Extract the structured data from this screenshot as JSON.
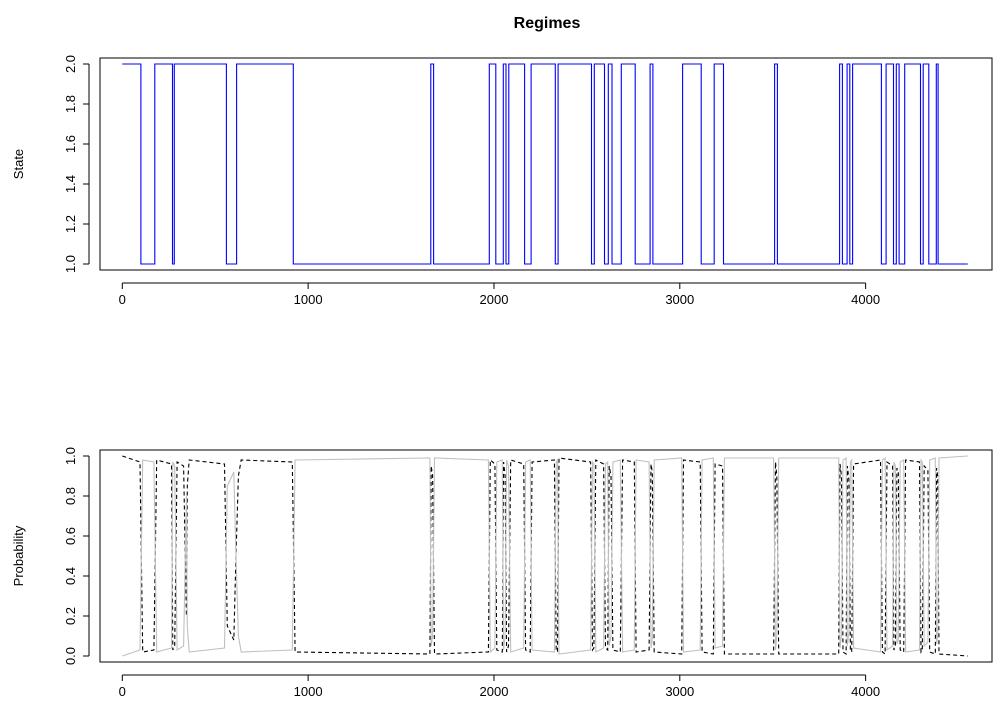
{
  "chart_data": [
    {
      "type": "line",
      "title": "Regimes",
      "xlabel": "",
      "ylabel": "State",
      "xlim": [
        -120,
        4680
      ],
      "ylim": [
        0.97,
        2.03
      ],
      "x_ticks": [
        0,
        1000,
        2000,
        3000,
        4000
      ],
      "x_tick_labels": [
        "0",
        "1000",
        "2000",
        "3000",
        "4000"
      ],
      "y_ticks": [
        1.0,
        1.2,
        1.4,
        1.6,
        1.8,
        2.0
      ],
      "y_tick_labels": [
        "1.0",
        "1.2",
        "1.4",
        "1.6",
        "1.8",
        "2.0"
      ],
      "grid": false,
      "legend": "none",
      "line_style": "step",
      "color": "#0000ff",
      "series": [
        {
          "x": [
            0,
            100,
            100,
            175,
            175,
            270,
            270,
            280,
            280,
            560,
            560,
            615,
            615,
            920,
            920,
            1660,
            1660,
            1675,
            1675,
            1975,
            1975,
            2010,
            2010,
            2050,
            2050,
            2065,
            2065,
            2080,
            2080,
            2165,
            2165,
            2200,
            2200,
            2330,
            2330,
            2345,
            2345,
            2525,
            2525,
            2540,
            2540,
            2595,
            2595,
            2615,
            2615,
            2635,
            2635,
            2685,
            2685,
            2760,
            2760,
            2840,
            2840,
            2855,
            2855,
            3015,
            3015,
            3115,
            3115,
            3185,
            3185,
            3235,
            3235,
            3510,
            3510,
            3525,
            3525,
            3860,
            3860,
            3875,
            3875,
            3900,
            3900,
            3915,
            3915,
            3930,
            3930,
            4085,
            4085,
            4110,
            4110,
            4150,
            4150,
            4165,
            4165,
            4180,
            4180,
            4210,
            4210,
            4295,
            4295,
            4310,
            4310,
            4340,
            4340,
            4380,
            4380,
            4390,
            4390,
            4550
          ],
          "y": [
            2,
            2,
            1,
            1,
            2,
            2,
            1,
            1,
            2,
            2,
            1,
            1,
            2,
            2,
            1,
            1,
            2,
            2,
            1,
            1,
            2,
            2,
            1,
            1,
            2,
            2,
            1,
            1,
            2,
            2,
            1,
            1,
            2,
            2,
            1,
            1,
            2,
            2,
            1,
            1,
            2,
            2,
            1,
            1,
            2,
            2,
            1,
            1,
            2,
            2,
            1,
            1,
            2,
            2,
            1,
            1,
            2,
            2,
            1,
            1,
            2,
            2,
            1,
            1,
            2,
            2,
            1,
            1,
            2,
            2,
            1,
            1,
            2,
            2,
            1,
            1,
            2,
            2,
            1,
            1,
            2,
            2,
            1,
            1,
            2,
            2,
            1,
            1,
            2,
            2,
            1,
            1,
            2,
            2,
            1,
            1,
            2,
            2,
            1,
            1
          ]
        }
      ]
    },
    {
      "type": "line",
      "title": "",
      "xlabel": "",
      "ylabel": "Probability",
      "xlim": [
        -120,
        4680
      ],
      "ylim": [
        -0.03,
        1.03
      ],
      "x_ticks": [
        0,
        1000,
        2000,
        3000,
        4000
      ],
      "x_tick_labels": [
        "0",
        "1000",
        "2000",
        "3000",
        "4000"
      ],
      "y_ticks": [
        0.0,
        0.2,
        0.4,
        0.6,
        0.8,
        1.0
      ],
      "y_tick_labels": [
        "0.0",
        "0.2",
        "0.4",
        "0.6",
        "0.8",
        "1.0"
      ],
      "grid": false,
      "legend": "none",
      "series": [
        {
          "style": "dashed",
          "color": "#000000",
          "x": [
            0,
            95,
            110,
            170,
            185,
            265,
            272,
            282,
            295,
            330,
            345,
            350,
            360,
            550,
            565,
            600,
            610,
            625,
            640,
            915,
            930,
            1655,
            1662,
            1670,
            1680,
            1970,
            1980,
            2005,
            2015,
            2045,
            2052,
            2060,
            2068,
            2078,
            2090,
            2160,
            2170,
            2195,
            2205,
            2325,
            2335,
            2342,
            2350,
            2520,
            2530,
            2538,
            2548,
            2590,
            2600,
            2612,
            2620,
            2630,
            2640,
            2680,
            2692,
            2755,
            2765,
            2835,
            2845,
            2852,
            2862,
            3010,
            3020,
            3110,
            3120,
            3180,
            3190,
            3230,
            3240,
            3505,
            3515,
            3522,
            3532,
            3855,
            3862,
            3870,
            3878,
            3895,
            3902,
            3910,
            3918,
            3925,
            3935,
            4080,
            4090,
            4105,
            4115,
            4145,
            4152,
            4160,
            4168,
            4176,
            4186,
            4205,
            4215,
            4290,
            4298,
            4305,
            4315,
            4335,
            4345,
            4375,
            4382,
            4388,
            4395,
            4550
          ],
          "y": [
            1.0,
            0.97,
            0.02,
            0.03,
            0.98,
            0.96,
            0.03,
            0.05,
            0.97,
            0.95,
            0.2,
            0.85,
            0.98,
            0.96,
            0.15,
            0.08,
            0.45,
            0.9,
            0.98,
            0.97,
            0.02,
            0.01,
            0.95,
            0.9,
            0.01,
            0.02,
            0.98,
            0.96,
            0.03,
            0.02,
            0.97,
            0.9,
            0.02,
            0.05,
            0.98,
            0.96,
            0.03,
            0.02,
            0.97,
            0.98,
            0.03,
            0.02,
            0.99,
            0.97,
            0.03,
            0.04,
            0.98,
            0.96,
            0.04,
            0.03,
            0.95,
            0.9,
            0.03,
            0.02,
            0.98,
            0.97,
            0.02,
            0.03,
            0.96,
            0.92,
            0.02,
            0.01,
            0.98,
            0.97,
            0.02,
            0.01,
            0.96,
            0.95,
            0.01,
            0.01,
            0.97,
            0.9,
            0.01,
            0.01,
            0.96,
            0.9,
            0.02,
            0.01,
            0.95,
            0.88,
            0.03,
            0.02,
            0.96,
            0.98,
            0.02,
            0.01,
            0.97,
            0.95,
            0.03,
            0.05,
            0.94,
            0.92,
            0.03,
            0.02,
            0.98,
            0.97,
            0.02,
            0.03,
            0.95,
            0.93,
            0.02,
            0.01,
            0.94,
            0.9,
            0.01,
            0.0
          ]
        },
        {
          "style": "solid",
          "color": "#c0c0c0",
          "x": [
            0,
            95,
            110,
            170,
            185,
            265,
            272,
            282,
            295,
            330,
            345,
            350,
            360,
            550,
            565,
            600,
            610,
            625,
            640,
            915,
            930,
            1655,
            1662,
            1670,
            1680,
            1970,
            1980,
            2005,
            2015,
            2045,
            2052,
            2060,
            2068,
            2078,
            2090,
            2160,
            2170,
            2195,
            2205,
            2325,
            2335,
            2342,
            2350,
            2520,
            2530,
            2538,
            2548,
            2590,
            2600,
            2612,
            2620,
            2630,
            2640,
            2680,
            2692,
            2755,
            2765,
            2835,
            2845,
            2852,
            2862,
            3010,
            3020,
            3110,
            3120,
            3180,
            3190,
            3230,
            3240,
            3505,
            3515,
            3522,
            3532,
            3855,
            3862,
            3870,
            3878,
            3895,
            3902,
            3910,
            3918,
            3925,
            3935,
            4080,
            4090,
            4105,
            4115,
            4145,
            4152,
            4160,
            4168,
            4176,
            4186,
            4205,
            4215,
            4290,
            4298,
            4305,
            4315,
            4335,
            4345,
            4375,
            4382,
            4388,
            4395,
            4550
          ],
          "y": [
            0.0,
            0.03,
            0.98,
            0.97,
            0.02,
            0.04,
            0.97,
            0.95,
            0.03,
            0.05,
            0.8,
            0.15,
            0.02,
            0.04,
            0.85,
            0.92,
            0.55,
            0.1,
            0.02,
            0.03,
            0.98,
            0.99,
            0.05,
            0.1,
            0.99,
            0.98,
            0.02,
            0.04,
            0.97,
            0.98,
            0.03,
            0.1,
            0.98,
            0.95,
            0.02,
            0.04,
            0.97,
            0.98,
            0.03,
            0.02,
            0.97,
            0.98,
            0.01,
            0.03,
            0.97,
            0.96,
            0.02,
            0.04,
            0.96,
            0.97,
            0.05,
            0.1,
            0.97,
            0.98,
            0.02,
            0.03,
            0.98,
            0.97,
            0.04,
            0.08,
            0.98,
            0.99,
            0.02,
            0.03,
            0.98,
            0.99,
            0.04,
            0.05,
            0.99,
            0.99,
            0.03,
            0.1,
            0.99,
            0.99,
            0.04,
            0.1,
            0.98,
            0.99,
            0.05,
            0.12,
            0.97,
            0.98,
            0.04,
            0.02,
            0.98,
            0.99,
            0.03,
            0.05,
            0.97,
            0.95,
            0.06,
            0.08,
            0.97,
            0.98,
            0.02,
            0.03,
            0.98,
            0.97,
            0.05,
            0.07,
            0.98,
            0.99,
            0.06,
            0.1,
            0.99,
            1.0
          ]
        }
      ]
    }
  ]
}
